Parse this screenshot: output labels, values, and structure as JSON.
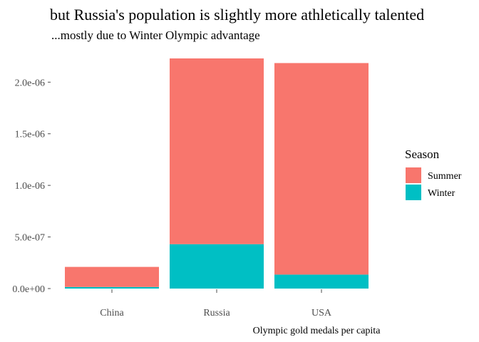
{
  "chart_data": {
    "type": "bar",
    "stacked": true,
    "title": "but Russia's population is slightly more athletically talented",
    "subtitle": "...mostly due to Winter Olympic advantage",
    "caption": "Olympic gold medals per capita",
    "xlabel": "",
    "ylabel": "",
    "categories": [
      "China",
      "Russia",
      "USA"
    ],
    "series": [
      {
        "name": "Summer",
        "color": "#F8766D",
        "values": [
          1.95e-07,
          1.8e-06,
          2.05e-06
        ]
      },
      {
        "name": "Winter",
        "color": "#00BFC4",
        "values": [
          1.5e-08,
          4.3e-07,
          1.35e-07
        ]
      }
    ],
    "y_ticks": [
      {
        "value": 0,
        "label": "0.0e+00"
      },
      {
        "value": 5e-07,
        "label": "5.0e-07"
      },
      {
        "value": 1e-06,
        "label": "1.0e-06"
      },
      {
        "value": 1.5e-06,
        "label": "1.5e-06"
      },
      {
        "value": 2e-06,
        "label": "2.0e-06"
      }
    ],
    "ylim": [
      0,
      2.23e-06
    ],
    "grid": false,
    "legend": {
      "title": "Season",
      "position": "right"
    }
  }
}
